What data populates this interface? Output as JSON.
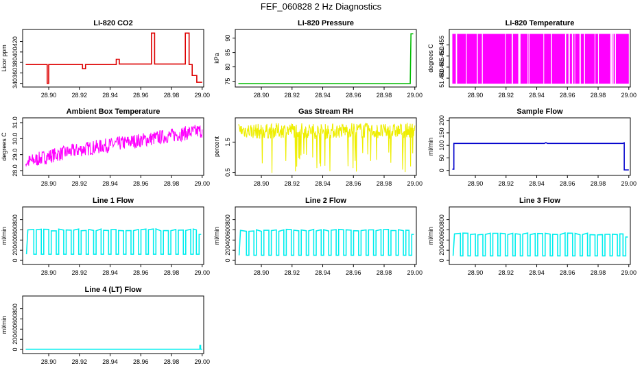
{
  "title": "FEF_060828  2 Hz Diagnostics",
  "x_ticks": [
    "28.90",
    "28.92",
    "28.94",
    "28.96",
    "28.98",
    "29.00"
  ],
  "chart_data": [
    {
      "id": "co2",
      "type": "line",
      "title": "Li-820 CO2",
      "ylabel": "Licor ppm",
      "color": "#dd0000",
      "xlim": [
        28.883,
        29.001
      ],
      "ylim": [
        333,
        443
      ],
      "y_ticks": [
        340,
        360,
        380,
        400,
        420
      ],
      "series": [
        {
          "x": [
            28.885,
            28.899,
            28.899,
            28.9,
            28.9,
            28.922,
            28.922,
            28.924,
            28.924,
            28.944,
            28.944,
            28.946,
            28.946,
            28.967,
            28.967,
            28.969,
            28.969,
            28.989,
            28.989,
            28.9915,
            28.9915,
            28.9935,
            28.9935,
            28.9965,
            28.9965,
            29.0
          ],
          "y": [
            376,
            376,
            340,
            340,
            376,
            376,
            368,
            368,
            376,
            376,
            386,
            386,
            377,
            377,
            436,
            436,
            377,
            377,
            436,
            436,
            376,
            376,
            355,
            355,
            342,
            342
          ]
        }
      ]
    },
    {
      "id": "pressure",
      "type": "line",
      "title": "Li-820 Pressure",
      "ylabel": "kPa",
      "color": "#00bb00",
      "xlim": [
        28.883,
        29.001
      ],
      "ylim": [
        73,
        93
      ],
      "y_ticks": [
        75,
        80,
        85,
        90
      ],
      "series": [
        {
          "x": [
            28.885,
            28.997,
            28.9975,
            28.999
          ],
          "y": [
            74.2,
            74.2,
            91.5,
            91.5
          ]
        }
      ]
    },
    {
      "id": "temperature",
      "type": "area",
      "title": "Li-820 Temperature",
      "ylabel": "degrees C",
      "color": "#ff00ff",
      "xlim": [
        28.883,
        29.001
      ],
      "ylim": [
        51.436,
        51.462
      ],
      "y_ticks": [
        51.44,
        51.445,
        51.45,
        51.455
      ],
      "y_tick_labels": [
        "51.440",
        "51.445",
        "51.450",
        "51.455"
      ],
      "series": [
        {
          "x": [
            28.885,
            29.0
          ],
          "y": [
            51.46,
            51.46
          ],
          "base": 51.4375
        }
      ]
    },
    {
      "id": "box_temp",
      "type": "line",
      "title": "Ambient Box Temperature",
      "ylabel": "degrees C",
      "color": "#ff00ff",
      "xlim": [
        28.883,
        29.001
      ],
      "ylim": [
        27.7,
        31.3
      ],
      "y_ticks": [
        28.0,
        29.0,
        30.0,
        31.0
      ],
      "y_tick_labels": [
        "28.0",
        "29.0",
        "30.0",
        "31.0"
      ],
      "series": [
        {
          "x": [
            28.885,
            28.9,
            28.92,
            28.94,
            28.96,
            28.98,
            29.0
          ],
          "y": [
            28.5,
            28.9,
            29.3,
            29.6,
            29.9,
            30.2,
            30.5
          ]
        }
      ]
    },
    {
      "id": "rh",
      "type": "line",
      "title": "Gas Stream RH",
      "ylabel": "percent",
      "color": "#eeee00",
      "xlim": [
        28.883,
        29.001
      ],
      "ylim": [
        0.4,
        2.3
      ],
      "y_ticks": [
        0.5,
        1.5
      ],
      "y_tick_labels": [
        "0.5",
        "1.5"
      ],
      "series": [
        {
          "x": [
            28.885,
            28.9,
            28.92,
            28.94,
            28.96,
            28.98,
            29.0
          ],
          "y": [
            1.9,
            1.85,
            1.9,
            1.85,
            1.9,
            1.85,
            1.9
          ]
        }
      ]
    },
    {
      "id": "sample_flow",
      "type": "line",
      "title": "Sample Flow",
      "ylabel": "ml/min",
      "color": "#0000cc",
      "xlim": [
        28.883,
        29.001
      ],
      "ylim": [
        -20,
        210
      ],
      "y_ticks": [
        0,
        50,
        100,
        150,
        200
      ],
      "series": [
        {
          "x": [
            28.885,
            28.886,
            28.886,
            28.945,
            28.946,
            28.947,
            28.996,
            28.997,
            28.997,
            29.0
          ],
          "y": [
            5,
            5,
            108,
            108,
            111,
            108,
            108,
            110,
            2,
            2
          ]
        }
      ]
    },
    {
      "id": "line1",
      "type": "line",
      "title": "Line 1 Flow",
      "ylabel": "ml/min",
      "color": "#00eeee",
      "xlim": [
        28.883,
        29.001
      ],
      "ylim": [
        -80,
        1050
      ],
      "y_ticks": [
        0,
        200,
        400,
        600,
        800
      ],
      "series": [
        {
          "high": 600,
          "low": 120,
          "x_start": 28.8855,
          "x_end": 28.998,
          "cycles": 22,
          "tail_high": 510
        }
      ]
    },
    {
      "id": "line2",
      "type": "line",
      "title": "Line 2 Flow",
      "ylabel": "ml/min",
      "color": "#00eeee",
      "xlim": [
        28.883,
        29.001
      ],
      "ylim": [
        -80,
        1050
      ],
      "y_ticks": [
        0,
        200,
        400,
        600,
        800
      ],
      "series": [
        {
          "high": 590,
          "low": 100,
          "x_start": 28.8855,
          "x_end": 28.998,
          "cycles": 22,
          "tail_high": 510
        }
      ]
    },
    {
      "id": "line3",
      "type": "line",
      "title": "Line 3 Flow",
      "ylabel": "ml/min",
      "color": "#00eeee",
      "xlim": [
        28.883,
        29.001
      ],
      "ylim": [
        -80,
        1050
      ],
      "y_ticks": [
        0,
        200,
        400,
        600,
        800
      ],
      "series": [
        {
          "high": 520,
          "low": 90,
          "x_start": 28.8855,
          "x_end": 28.998,
          "cycles": 22,
          "tail_high": 460
        }
      ]
    },
    {
      "id": "line4",
      "type": "line",
      "title": "Line 4 (LT) Flow",
      "ylabel": "ml/min",
      "color": "#00eeee",
      "xlim": [
        28.883,
        29.001
      ],
      "ylim": [
        -80,
        1050
      ],
      "y_ticks": [
        0,
        200,
        400,
        600,
        800
      ],
      "series": [
        {
          "x": [
            28.885,
            28.9985,
            28.9985,
            28.999,
            28.999,
            29.0
          ],
          "y": [
            5,
            5,
            80,
            80,
            5,
            5
          ]
        }
      ]
    }
  ]
}
